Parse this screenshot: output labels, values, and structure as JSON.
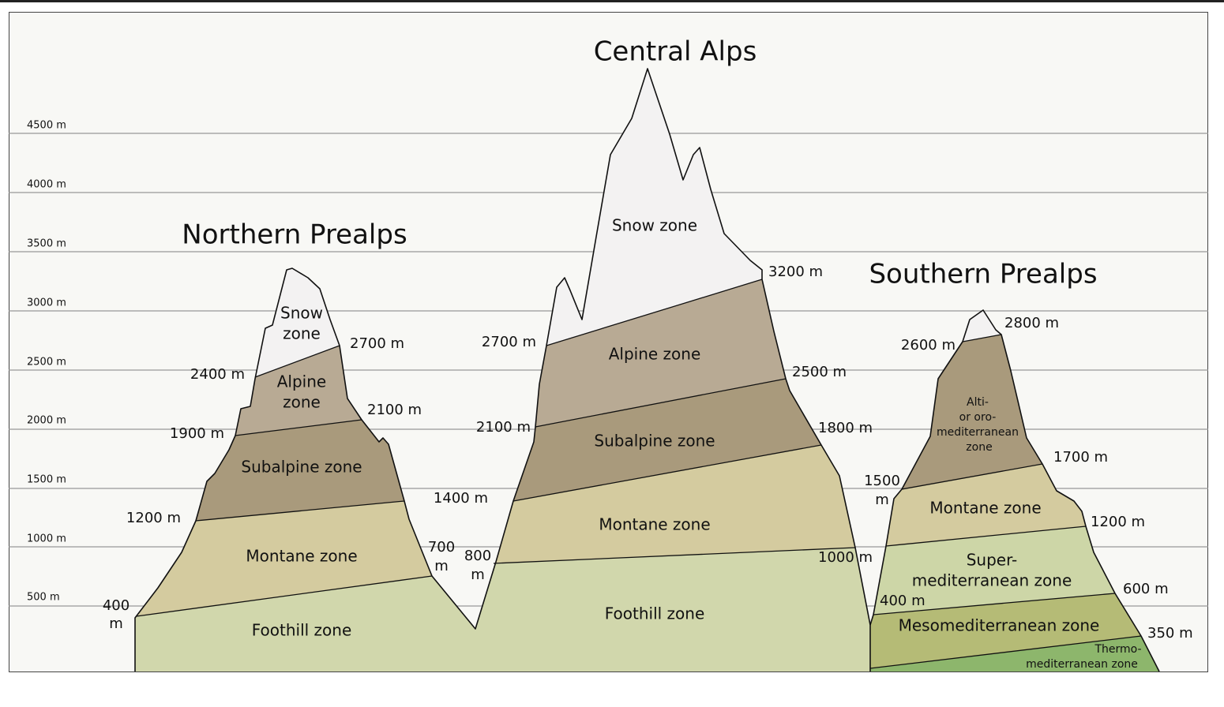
{
  "elevation_axis": [
    "4500 m",
    "4000 m",
    "3500 m",
    "3000 m",
    "2500 m",
    "2000 m",
    "1500 m",
    "1000 m",
    "500 m"
  ],
  "northern_prealps": {
    "title": "Northern Prealps",
    "zones": [
      [
        "Snow",
        "zone"
      ],
      [
        "Alpine",
        "zone"
      ],
      [
        "Subalpine zone"
      ],
      [
        "Montane zone"
      ],
      [
        "Foothill zone"
      ]
    ],
    "elevations": [
      [
        "2700 m"
      ],
      [
        "2400 m"
      ],
      [
        "2100 m"
      ],
      [
        "1900 m"
      ],
      [
        "1200 m"
      ],
      [
        "700",
        "m"
      ],
      [
        "400",
        "m"
      ]
    ]
  },
  "central_alps": {
    "title": "Central Alps",
    "zones": [
      [
        "Snow zone"
      ],
      [
        "Alpine zone"
      ],
      [
        "Subalpine zone"
      ],
      [
        "Montane zone"
      ],
      [
        "Foothill zone"
      ]
    ],
    "elevations": [
      [
        "3200 m"
      ],
      [
        "2700 m"
      ],
      [
        "2500 m"
      ],
      [
        "2100 m"
      ],
      [
        "1800 m"
      ],
      [
        "1400 m"
      ],
      [
        "800",
        "m"
      ],
      [
        "1000 m"
      ]
    ]
  },
  "southern_prealps": {
    "title": "Southern Prealps",
    "zones": [
      [
        "Alti-",
        "or oro-",
        "mediterranean",
        "zone"
      ],
      [
        "Montane zone"
      ],
      [
        "Super-",
        "mediterranean zone"
      ],
      [
        "Mesomediterranean zone"
      ],
      [
        "Thermo-",
        "mediterranean zone"
      ]
    ],
    "elevations": [
      [
        "2800 m"
      ],
      [
        "2600 m"
      ],
      [
        "1700 m"
      ],
      [
        "1500",
        "m"
      ],
      [
        "1200 m"
      ],
      [
        "600 m"
      ],
      [
        "400 m"
      ],
      [
        "350 m"
      ]
    ]
  }
}
